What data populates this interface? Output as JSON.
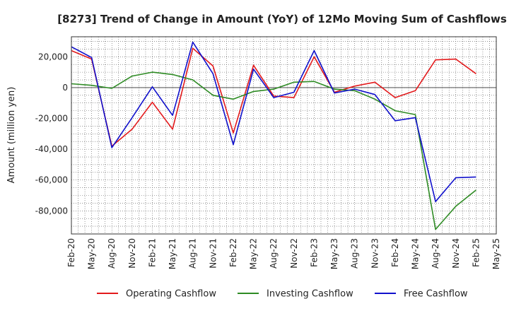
{
  "chart_data": {
    "type": "line",
    "title": "[8273]  Trend of Change in Amount (YoY) of 12Mo Moving Sum of Cashflows",
    "xlabel": "",
    "ylabel": "Amount (million yen)",
    "ylim": [
      -95000,
      33000
    ],
    "yticks": [
      20000,
      0,
      -20000,
      -40000,
      -60000,
      -80000
    ],
    "ytick_labels": [
      "20,000",
      "0",
      "-20,000",
      "-40,000",
      "-60,000",
      "-80,000"
    ],
    "x_ticks": [
      "Feb-20",
      "May-20",
      "Aug-20",
      "Nov-20",
      "Feb-21",
      "May-21",
      "Aug-21",
      "Nov-21",
      "Feb-22",
      "May-22",
      "Aug-22",
      "Nov-22",
      "Feb-23",
      "May-23",
      "Aug-23",
      "Nov-23",
      "Feb-24",
      "May-24",
      "Aug-24",
      "Nov-24",
      "Feb-25",
      "May-25"
    ],
    "grid": true,
    "legend_position": "bottom",
    "series": [
      {
        "name": "Operating Cashflow",
        "color": "#e31a1c",
        "values": [
          24000,
          18500,
          -38000,
          -27000,
          -9500,
          -27000,
          25500,
          14000,
          -29500,
          14500,
          -5500,
          -6500,
          20000,
          -3000,
          1000,
          3500,
          -6500,
          -2000,
          18000,
          18500,
          9000
        ]
      },
      {
        "name": "Investing Cashflow",
        "color": "#2e8b24",
        "values": [
          2500,
          1500,
          -500,
          7500,
          10000,
          8500,
          5000,
          -5000,
          -7500,
          -2500,
          -1000,
          3500,
          4000,
          -1000,
          -2000,
          -7500,
          -15000,
          -17500,
          -92000,
          -77000,
          -66500
        ]
      },
      {
        "name": "Free Cashflow",
        "color": "#1111cc",
        "values": [
          26500,
          19500,
          -39000,
          -19500,
          500,
          -18000,
          29500,
          9000,
          -37000,
          12000,
          -6500,
          -3000,
          24000,
          -3500,
          -1000,
          -4500,
          -21500,
          -19500,
          -74000,
          -58500,
          -58000
        ]
      }
    ]
  }
}
